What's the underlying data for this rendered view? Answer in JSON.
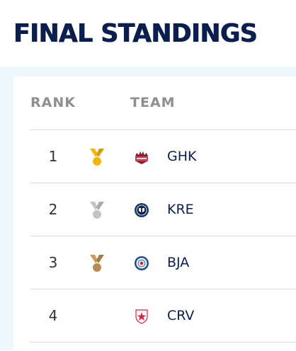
{
  "page": {
    "title": "FINAL STANDINGS"
  },
  "table": {
    "headers": {
      "rank": "RANK",
      "team": "TEAM"
    },
    "rows": [
      {
        "rank": "1",
        "team": "GHK",
        "medal": "gold-medal-icon",
        "logo": "ghk-logo-icon"
      },
      {
        "rank": "2",
        "team": "KRE",
        "medal": "silver-medal-icon",
        "logo": "kre-logo-icon"
      },
      {
        "rank": "3",
        "team": "BJA",
        "medal": "bronze-medal-icon",
        "logo": "bja-logo-icon"
      },
      {
        "rank": "4",
        "team": "CRV",
        "medal": "",
        "logo": "crv-logo-icon"
      }
    ]
  },
  "colors": {
    "title": "#0a1f4e",
    "header": "#8f8f8f",
    "gold": "#f2b705",
    "silver": "#c4c4c4",
    "bronze": "#b98a52",
    "background": "#eef7f9"
  }
}
